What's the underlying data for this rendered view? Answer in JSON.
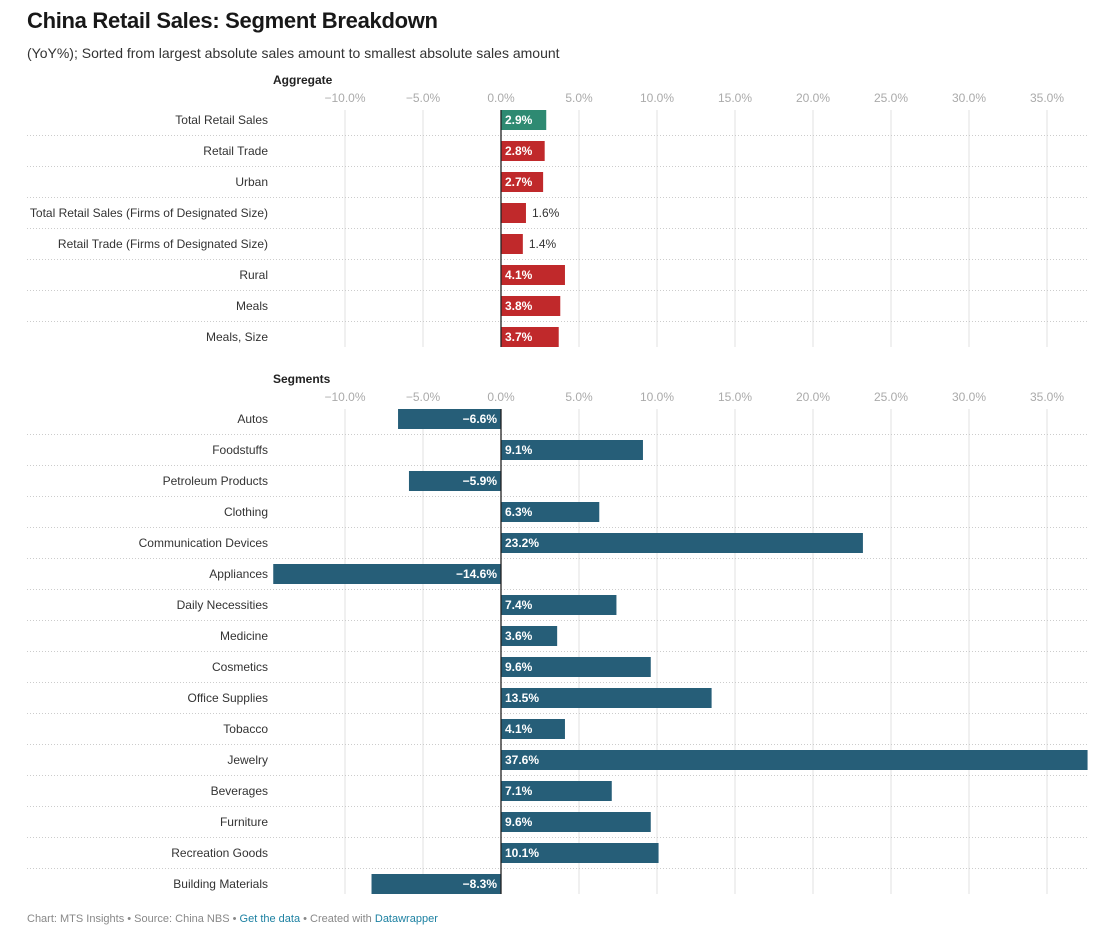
{
  "header": {
    "title": "China Retail Sales: Segment Breakdown",
    "subtitle": "(YoY%); Sorted from largest absolute sales amount to smallest absolute sales amount"
  },
  "footer": {
    "chart_credit": "Chart: MTS Insights",
    "separator": " • ",
    "source": "Source: China NBS",
    "get_data_link": "Get the data",
    "created_with": "Created with",
    "datawrapper_link": "Datawrapper"
  },
  "colors": {
    "highlight": "#2e8a72",
    "aggregate": "#c0292b",
    "segments": "#265e78",
    "grid": "#e2e2e2",
    "zero_line": "#222222",
    "row_separator": "#cccccc"
  },
  "chart_data": [
    {
      "type": "bar",
      "orientation": "horizontal",
      "title": "Aggregate",
      "xlabel": "",
      "ylabel": "",
      "unit": "%",
      "xlim": [
        -10,
        38
      ],
      "ticks": [
        -10,
        -5,
        0,
        5,
        10,
        15,
        20,
        25,
        30,
        35
      ],
      "tick_labels": [
        "−10.0%",
        "−5.0%",
        "0.0%",
        "5.0%",
        "10.0%",
        "15.0%",
        "20.0%",
        "25.0%",
        "30.0%",
        "35.0%"
      ],
      "grid": true,
      "categories": [
        "Total Retail Sales",
        "Retail Trade",
        "Urban",
        "Total Retail Sales (Firms of Designated Size)",
        "Retail Trade (Firms of Designated Size)",
        "Rural",
        "Meals",
        "Meals, Size"
      ],
      "values": [
        2.9,
        2.8,
        2.7,
        1.6,
        1.4,
        4.1,
        3.8,
        3.7
      ],
      "value_labels": [
        "2.9%",
        "2.8%",
        "2.7%",
        "1.6%",
        "1.4%",
        "4.1%",
        "3.8%",
        "3.7%"
      ],
      "bar_colors": [
        "highlight",
        "aggregate",
        "aggregate",
        "aggregate",
        "aggregate",
        "aggregate",
        "aggregate",
        "aggregate"
      ]
    },
    {
      "type": "bar",
      "orientation": "horizontal",
      "title": "Segments",
      "xlabel": "",
      "ylabel": "",
      "unit": "%",
      "xlim": [
        -10,
        38
      ],
      "ticks": [
        -10,
        -5,
        0,
        5,
        10,
        15,
        20,
        25,
        30,
        35
      ],
      "tick_labels": [
        "−10.0%",
        "−5.0%",
        "0.0%",
        "5.0%",
        "10.0%",
        "15.0%",
        "20.0%",
        "25.0%",
        "30.0%",
        "35.0%"
      ],
      "grid": true,
      "categories": [
        "Autos",
        "Foodstuffs",
        "Petroleum Products",
        "Clothing",
        "Communication Devices",
        "Appliances",
        "Daily Necessities",
        "Medicine",
        "Cosmetics",
        "Office Supplies",
        "Tobacco",
        "Jewelry",
        "Beverages",
        "Furniture",
        "Recreation Goods",
        "Building Materials"
      ],
      "values": [
        -6.6,
        9.1,
        -5.9,
        6.3,
        23.2,
        -14.6,
        7.4,
        3.6,
        9.6,
        13.5,
        4.1,
        37.6,
        7.1,
        9.6,
        10.1,
        -8.3
      ],
      "value_labels": [
        "−6.6%",
        "9.1%",
        "−5.9%",
        "6.3%",
        "23.2%",
        "−14.6%",
        "7.4%",
        "3.6%",
        "9.6%",
        "13.5%",
        "4.1%",
        "37.6%",
        "7.1%",
        "9.6%",
        "10.1%",
        "−8.3%"
      ],
      "bar_colors": [
        "segments",
        "segments",
        "segments",
        "segments",
        "segments",
        "segments",
        "segments",
        "segments",
        "segments",
        "segments",
        "segments",
        "segments",
        "segments",
        "segments",
        "segments",
        "segments"
      ]
    }
  ]
}
